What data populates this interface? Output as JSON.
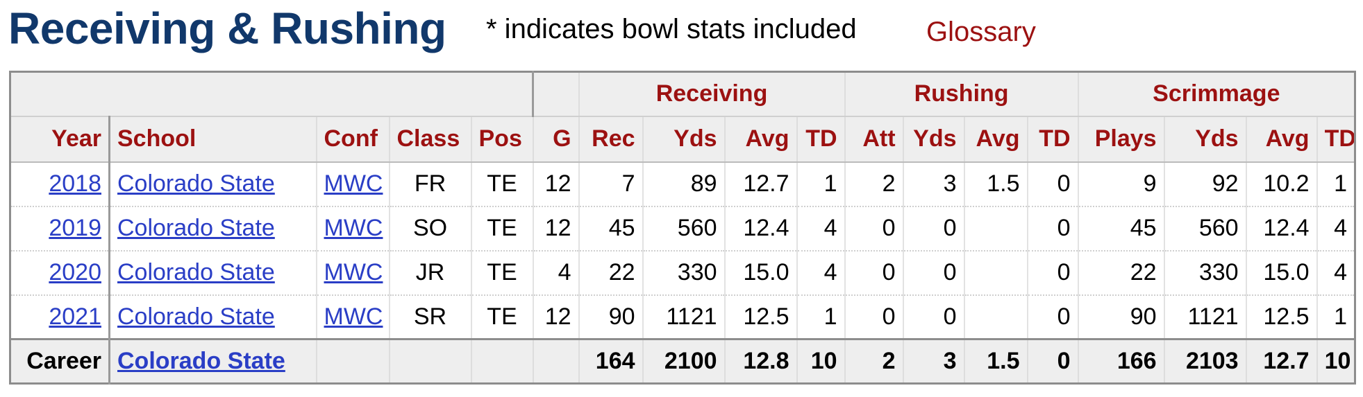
{
  "header": {
    "title": "Receiving & Rushing",
    "note": "* indicates bowl stats included",
    "glossary": "Glossary"
  },
  "groups": [
    "Receiving",
    "Rushing",
    "Scrimmage"
  ],
  "columns": [
    "Year",
    "School",
    "Conf",
    "Class",
    "Pos",
    "G",
    "Rec",
    "Yds",
    "Avg",
    "TD",
    "Att",
    "Yds",
    "Avg",
    "TD",
    "Plays",
    "Yds",
    "Avg",
    "TD"
  ],
  "rows": [
    {
      "year": "2018",
      "school": "Colorado State",
      "conf": "MWC",
      "cls": "FR",
      "pos": "TE",
      "g": "12",
      "rec": "7",
      "rec_yds": "89",
      "rec_avg": "12.7",
      "rec_td": "1",
      "att": "2",
      "rush_yds": "3",
      "rush_avg": "1.5",
      "rush_td": "0",
      "plays": "9",
      "scrim_yds": "92",
      "scrim_avg": "10.2",
      "scrim_td": "1"
    },
    {
      "year": "2019",
      "school": "Colorado State",
      "conf": "MWC",
      "cls": "SO",
      "pos": "TE",
      "g": "12",
      "rec": "45",
      "rec_yds": "560",
      "rec_avg": "12.4",
      "rec_td": "4",
      "att": "0",
      "rush_yds": "0",
      "rush_avg": "",
      "rush_td": "0",
      "plays": "45",
      "scrim_yds": "560",
      "scrim_avg": "12.4",
      "scrim_td": "4"
    },
    {
      "year": "2020",
      "school": "Colorado State",
      "conf": "MWC",
      "cls": "JR",
      "pos": "TE",
      "g": "4",
      "rec": "22",
      "rec_yds": "330",
      "rec_avg": "15.0",
      "rec_td": "4",
      "att": "0",
      "rush_yds": "0",
      "rush_avg": "",
      "rush_td": "0",
      "plays": "22",
      "scrim_yds": "330",
      "scrim_avg": "15.0",
      "scrim_td": "4"
    },
    {
      "year": "2021",
      "school": "Colorado State",
      "conf": "MWC",
      "cls": "SR",
      "pos": "TE",
      "g": "12",
      "rec": "90",
      "rec_yds": "1121",
      "rec_avg": "12.5",
      "rec_td": "1",
      "att": "0",
      "rush_yds": "0",
      "rush_avg": "",
      "rush_td": "0",
      "plays": "90",
      "scrim_yds": "1121",
      "scrim_avg": "12.5",
      "scrim_td": "1"
    }
  ],
  "career": {
    "year": "Career",
    "school": "Colorado State",
    "conf": "",
    "cls": "",
    "pos": "",
    "g": "",
    "rec": "164",
    "rec_yds": "2100",
    "rec_avg": "12.8",
    "rec_td": "10",
    "att": "2",
    "rush_yds": "3",
    "rush_avg": "1.5",
    "rush_td": "0",
    "plays": "166",
    "scrim_yds": "2103",
    "scrim_avg": "12.7",
    "scrim_td": "10"
  }
}
